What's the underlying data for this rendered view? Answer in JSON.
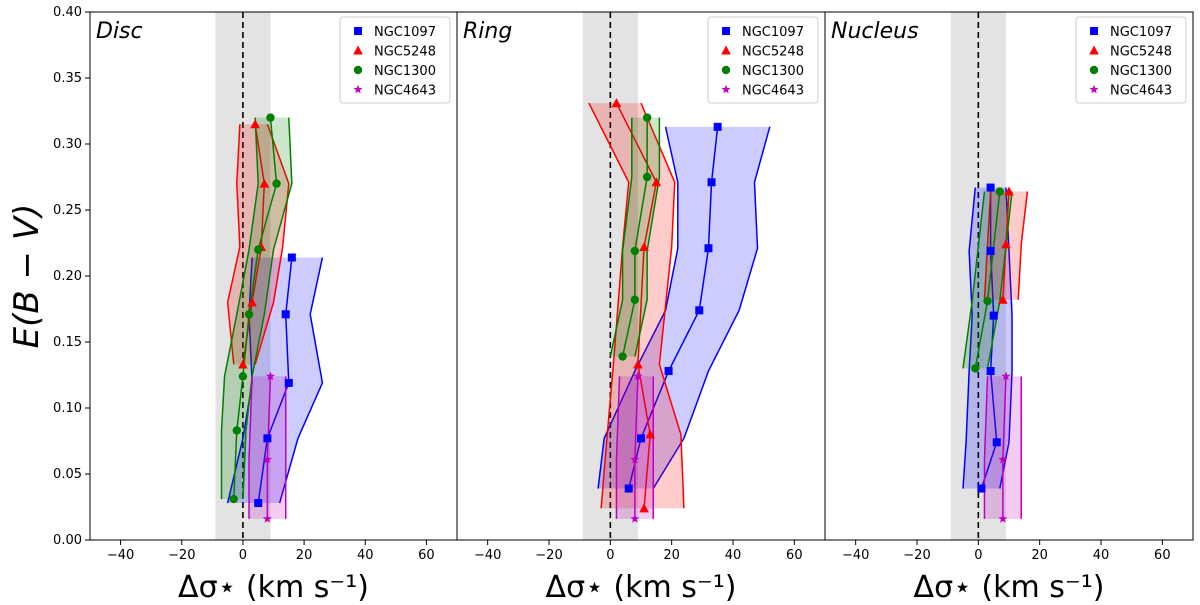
{
  "figure": {
    "ylabel": "E(B − V)",
    "xlabel": "Δσ⋆ (km s⁻¹)"
  },
  "chart_data": [
    {
      "type": "line",
      "title": "Disc",
      "xlabel": "Δσ⋆ (km s⁻¹)",
      "ylabel": "E(B − V)",
      "xlim": [
        -50,
        70
      ],
      "ylim": [
        0,
        0.4
      ],
      "x_ticks": [
        -40,
        -20,
        0,
        20,
        40,
        60
      ],
      "y_ticks": [
        0.0,
        0.05,
        0.1,
        0.15,
        0.2,
        0.25,
        0.3,
        0.35,
        0.4
      ],
      "x_tick_labels": [
        "−40",
        "−20",
        "0",
        "20",
        "40",
        "60"
      ],
      "y_tick_labels": [
        "0.00",
        "0.05",
        "0.10",
        "0.15",
        "0.20",
        "0.25",
        "0.30",
        "0.35",
        "0.40"
      ],
      "shaded_band": [
        -9,
        9
      ],
      "zero_line": 0,
      "legend_position": "top-right",
      "series": [
        {
          "name": "NGC1097",
          "color": "#0000ff",
          "marker": "square",
          "points": [
            [
              5,
              0.028
            ],
            [
              8,
              0.077
            ],
            [
              15,
              0.119
            ],
            [
              14,
              0.171
            ],
            [
              16,
              0.214
            ]
          ],
          "band_low": [
            -5,
            0,
            3,
            2,
            3
          ],
          "band_high": [
            12,
            18,
            26,
            22,
            26
          ]
        },
        {
          "name": "NGC5248",
          "color": "#ff0000",
          "marker": "triangle",
          "points": [
            [
              0,
              0.133
            ],
            [
              3,
              0.18
            ],
            [
              6,
              0.222
            ],
            [
              7,
              0.27
            ],
            [
              4,
              0.315
            ]
          ],
          "band_low": [
            -3,
            -5,
            -1,
            -2,
            -1
          ],
          "band_high": [
            4,
            10,
            13,
            15,
            8
          ]
        },
        {
          "name": "NGC1300",
          "color": "#008000",
          "marker": "circle",
          "points": [
            [
              -3,
              0.031
            ],
            [
              -2,
              0.083
            ],
            [
              0,
              0.124
            ],
            [
              2,
              0.171
            ],
            [
              5,
              0.22
            ],
            [
              11,
              0.27
            ],
            [
              9,
              0.32
            ]
          ],
          "band_low": [
            -7,
            -7,
            -6,
            -2,
            2,
            5,
            4
          ],
          "band_high": [
            0,
            1,
            3,
            7,
            10,
            16,
            15
          ]
        },
        {
          "name": "NGC4643",
          "color": "#c000c0",
          "marker": "star",
          "points": [
            [
              8,
              0.016
            ],
            [
              8,
              0.061
            ],
            [
              9,
              0.124
            ]
          ],
          "band_low": [
            2,
            2,
            3
          ],
          "band_high": [
            14,
            14,
            14
          ]
        }
      ]
    },
    {
      "type": "line",
      "title": "Ring",
      "xlabel": "Δσ⋆ (km s⁻¹)",
      "ylabel": "E(B − V)",
      "xlim": [
        -50,
        70
      ],
      "ylim": [
        0,
        0.4
      ],
      "x_ticks": [
        -40,
        -20,
        0,
        20,
        40,
        60
      ],
      "y_ticks": [
        0.0,
        0.05,
        0.1,
        0.15,
        0.2,
        0.25,
        0.3,
        0.35,
        0.4
      ],
      "x_tick_labels": [
        "−40",
        "−20",
        "0",
        "20",
        "40",
        "60"
      ],
      "y_tick_labels": [
        "0.00",
        "0.05",
        "0.10",
        "0.15",
        "0.20",
        "0.25",
        "0.30",
        "0.35",
        "0.40"
      ],
      "shaded_band": [
        -9,
        9
      ],
      "zero_line": 0,
      "legend_position": "top-right",
      "series": [
        {
          "name": "NGC1097",
          "color": "#0000ff",
          "marker": "square",
          "points": [
            [
              6,
              0.039
            ],
            [
              10,
              0.077
            ],
            [
              19,
              0.128
            ],
            [
              29,
              0.174
            ],
            [
              32,
              0.221
            ],
            [
              33,
              0.271
            ],
            [
              35,
              0.313
            ]
          ],
          "band_low": [
            -4,
            -2,
            8,
            18,
            22,
            22,
            18
          ],
          "band_high": [
            14,
            24,
            32,
            42,
            48,
            47,
            52
          ]
        },
        {
          "name": "NGC5248",
          "color": "#ff0000",
          "marker": "triangle",
          "points": [
            [
              11,
              0.024
            ],
            [
              13,
              0.08
            ],
            [
              9,
              0.133
            ],
            [
              11,
              0.222
            ],
            [
              15,
              0.271
            ],
            [
              2,
              0.331
            ]
          ],
          "band_low": [
            -3,
            -1,
            1,
            4,
            6,
            -7
          ],
          "band_high": [
            24,
            23,
            16,
            20,
            21,
            10
          ]
        },
        {
          "name": "NGC1300",
          "color": "#008000",
          "marker": "circle",
          "points": [
            [
              4,
              0.139
            ],
            [
              8,
              0.182
            ],
            [
              8,
              0.219
            ],
            [
              12,
              0.275
            ],
            [
              12,
              0.32
            ]
          ],
          "band_low": [
            0,
            4,
            4,
            7,
            7
          ],
          "band_high": [
            8,
            12,
            12,
            16,
            16
          ]
        },
        {
          "name": "NGC4643",
          "color": "#c000c0",
          "marker": "star",
          "points": [
            [
              8,
              0.016
            ],
            [
              8,
              0.061
            ],
            [
              9,
              0.124
            ]
          ],
          "band_low": [
            2,
            2,
            3
          ],
          "band_high": [
            14,
            14,
            14
          ]
        }
      ]
    },
    {
      "type": "line",
      "title": "Nucleus",
      "xlabel": "Δσ⋆ (km s⁻¹)",
      "ylabel": "E(B − V)",
      "xlim": [
        -50,
        70
      ],
      "ylim": [
        0,
        0.4
      ],
      "x_ticks": [
        -40,
        -20,
        0,
        20,
        40,
        60
      ],
      "y_ticks": [
        0.0,
        0.05,
        0.1,
        0.15,
        0.2,
        0.25,
        0.3,
        0.35,
        0.4
      ],
      "x_tick_labels": [
        "−40",
        "−20",
        "0",
        "20",
        "40",
        "60"
      ],
      "y_tick_labels": [
        "0.00",
        "0.05",
        "0.10",
        "0.15",
        "0.20",
        "0.25",
        "0.30",
        "0.35",
        "0.40"
      ],
      "shaded_band": [
        -9,
        9
      ],
      "zero_line": 0,
      "legend_position": "top-right",
      "series": [
        {
          "name": "NGC1097",
          "color": "#0000ff",
          "marker": "square",
          "points": [
            [
              1,
              0.039
            ],
            [
              6,
              0.074
            ],
            [
              4,
              0.128
            ],
            [
              5,
              0.17
            ],
            [
              4,
              0.219
            ],
            [
              4,
              0.267
            ]
          ],
          "band_low": [
            -5,
            -4,
            -3,
            -2,
            -3,
            -1
          ],
          "band_high": [
            7,
            10,
            11,
            11,
            10,
            9
          ]
        },
        {
          "name": "NGC5248",
          "color": "#ff0000",
          "marker": "triangle",
          "points": [
            [
              8,
              0.182
            ],
            [
              9,
              0.224
            ],
            [
              10,
              0.264
            ]
          ],
          "band_low": [
            2,
            3,
            4
          ],
          "band_high": [
            13,
            14,
            16
          ]
        },
        {
          "name": "NGC1300",
          "color": "#008000",
          "marker": "circle",
          "points": [
            [
              -1,
              0.13
            ],
            [
              3,
              0.181
            ],
            [
              7,
              0.264
            ]
          ],
          "band_low": [
            -5,
            -2,
            2
          ],
          "band_high": [
            3,
            7,
            11
          ]
        },
        {
          "name": "NGC4643",
          "color": "#c000c0",
          "marker": "star",
          "points": [
            [
              8,
              0.016
            ],
            [
              8,
              0.061
            ],
            [
              9,
              0.124
            ]
          ],
          "band_low": [
            2,
            2,
            3
          ],
          "band_high": [
            14,
            14,
            14
          ]
        }
      ]
    }
  ]
}
